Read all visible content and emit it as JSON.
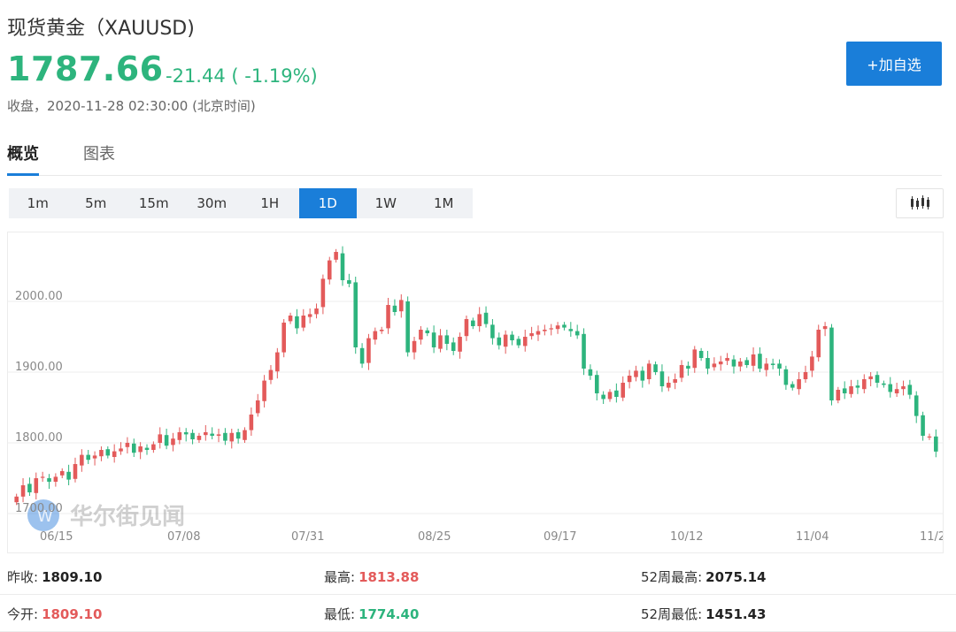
{
  "header": {
    "title": "现货黄金（XAUUSD)",
    "price": "1787.66",
    "change": "-21.44 ( -1.19%)",
    "status": "收盘，2020-11-28 02:30:00 (北京时间)",
    "add_button": "+加自选"
  },
  "tabs": [
    {
      "label": "概览",
      "active": true
    },
    {
      "label": "图表",
      "active": false
    }
  ],
  "periods": [
    {
      "label": "1m",
      "active": false
    },
    {
      "label": "5m",
      "active": false
    },
    {
      "label": "15m",
      "active": false
    },
    {
      "label": "30m",
      "active": false
    },
    {
      "label": "1H",
      "active": false
    },
    {
      "label": "1D",
      "active": true
    },
    {
      "label": "1W",
      "active": false
    },
    {
      "label": "1M",
      "active": false
    }
  ],
  "chart_type_icon": "candlestick-icon",
  "watermark": "华尔街见闻",
  "colors": {
    "up": "#e35a5a",
    "down": "#2db47d",
    "accent": "#1a7ed9"
  },
  "chart_data": {
    "type": "candlestick",
    "title": "",
    "y_ticks": [
      "2000.00",
      "1900.00",
      "1800.00",
      "1700.00"
    ],
    "x_ticks": [
      "06/15",
      "07/08",
      "07/31",
      "08/25",
      "09/17",
      "10/12",
      "11/04",
      "11/2"
    ],
    "ylim": [
      1690,
      2100
    ],
    "grid": true,
    "closes": [
      1724,
      1740,
      1730,
      1750,
      1752,
      1745,
      1752,
      1760,
      1748,
      1770,
      1783,
      1776,
      1782,
      1790,
      1782,
      1788,
      1792,
      1800,
      1786,
      1795,
      1790,
      1798,
      1812,
      1796,
      1806,
      1815,
      1812,
      1805,
      1810,
      1815,
      1810,
      1812,
      1803,
      1814,
      1806,
      1818,
      1840,
      1860,
      1888,
      1903,
      1928,
      1970,
      1980,
      1962,
      1980,
      1982,
      1990,
      2032,
      2058,
      2070,
      2030,
      2025,
      1935,
      1912,
      1948,
      1958,
      1960,
      1995,
      1985,
      2002,
      1928,
      1944,
      1960,
      1955,
      1935,
      1952,
      1940,
      1930,
      1950,
      1975,
      1965,
      1982,
      1968,
      1948,
      1938,
      1953,
      1945,
      1938,
      1950,
      1955,
      1958,
      1960,
      1962,
      1966,
      1963,
      1958,
      1952,
      1905,
      1895,
      1870,
      1862,
      1872,
      1865,
      1885,
      1895,
      1902,
      1888,
      1912,
      1900,
      1880,
      1885,
      1890,
      1910,
      1905,
      1932,
      1920,
      1905,
      1912,
      1915,
      1920,
      1908,
      1915,
      1910,
      1925,
      1905,
      1912,
      1910,
      1905,
      1882,
      1878,
      1890,
      1900,
      1922,
      1960,
      1965,
      1860,
      1875,
      1870,
      1880,
      1878,
      1890,
      1894,
      1885,
      1882,
      1872,
      1876,
      1880,
      1868,
      1838,
      1810,
      1809,
      1787.66
    ]
  },
  "stats": [
    [
      {
        "label": "昨收:",
        "value": "1809.10",
        "color": "neutral"
      },
      {
        "label": "最高:",
        "value": "1813.88",
        "color": "up"
      },
      {
        "label": "52周最高:",
        "value": "2075.14",
        "color": "neutral"
      }
    ],
    [
      {
        "label": "今开:",
        "value": "1809.10",
        "color": "up"
      },
      {
        "label": "最低:",
        "value": "1774.40",
        "color": "down"
      },
      {
        "label": "52周最低:",
        "value": "1451.43",
        "color": "neutral"
      }
    ]
  ]
}
